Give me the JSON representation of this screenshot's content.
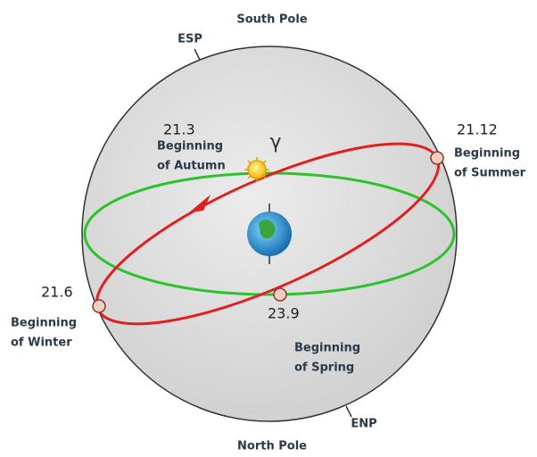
{
  "poles": {
    "south": "South Pole",
    "north": "North Pole",
    "esp": "ESP",
    "enp": "ENP"
  },
  "equinox_symbol": "γ",
  "points": [
    {
      "date": "21.3",
      "line1": "Beginning",
      "line2": "of Autumn"
    },
    {
      "date": "21.12",
      "line1": "Beginning",
      "line2": "of Summer"
    },
    {
      "date": "21.6",
      "line1": "Beginning",
      "line2": "of Winter"
    },
    {
      "date": "23.9",
      "line1": "Beginning",
      "line2": "of Spring"
    }
  ]
}
